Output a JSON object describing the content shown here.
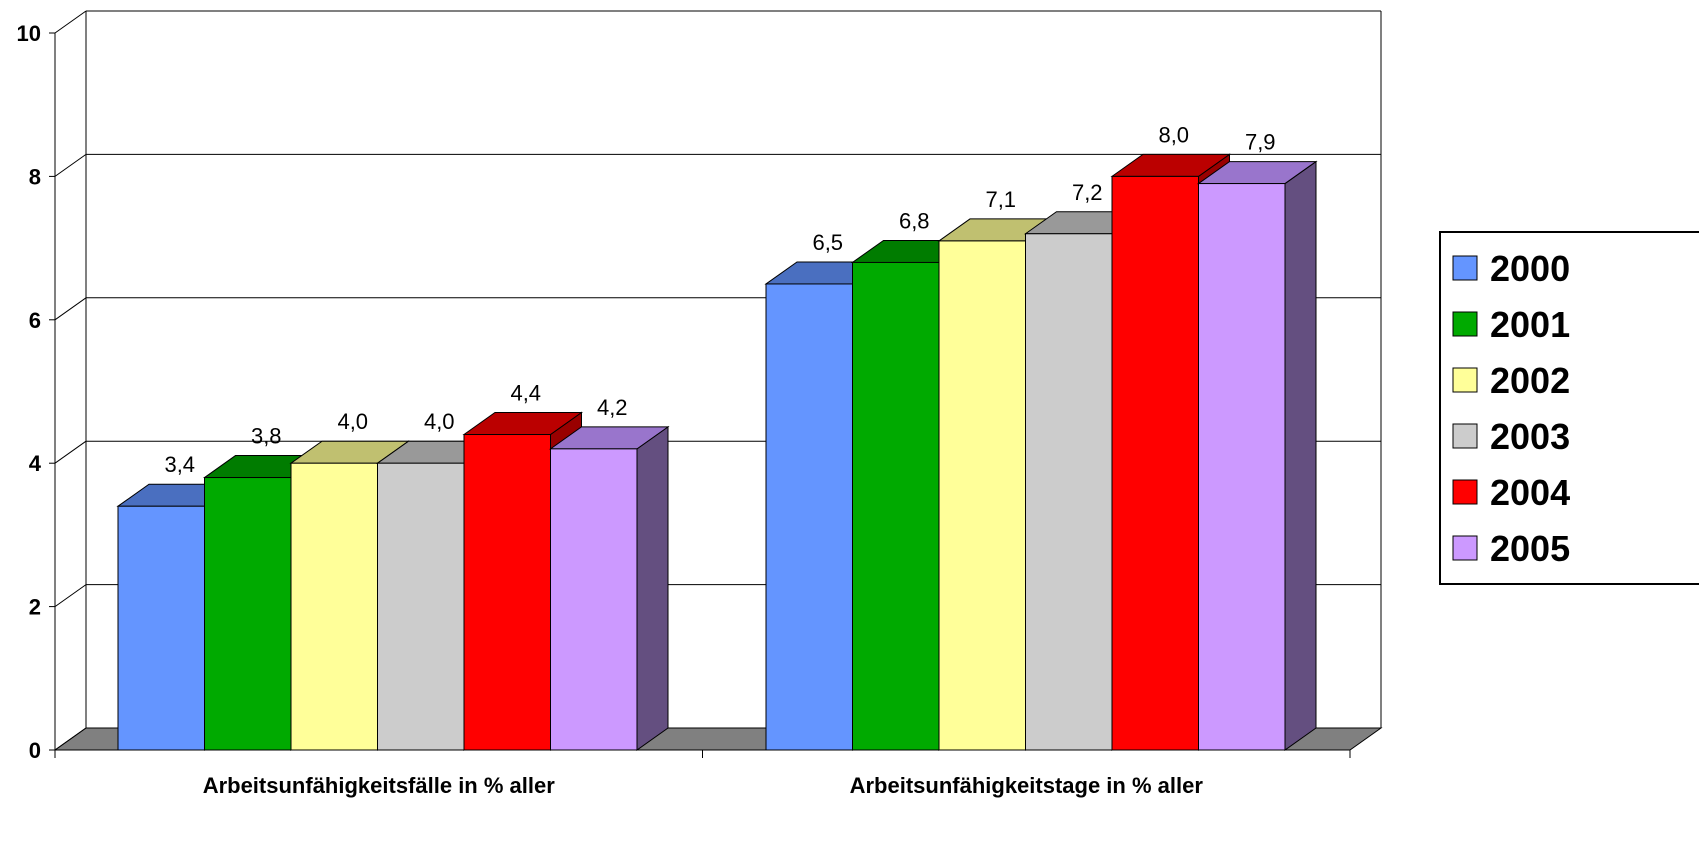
{
  "chart_data": {
    "type": "bar",
    "title": "",
    "xlabel": "",
    "ylabel": "",
    "ylim": [
      0,
      10
    ],
    "yticks": [
      "0",
      "2",
      "4",
      "6",
      "8",
      "10"
    ],
    "grid": true,
    "legend_position": "right",
    "categories": [
      "Arbeitsunfähigkeitsfälle in % aller",
      "Arbeitsunfähigkeitstage in % aller"
    ],
    "series": [
      {
        "name": "2000",
        "values": [
          3.4,
          6.5
        ],
        "labels": [
          "3,4",
          "6,5"
        ],
        "color": "#6495ff",
        "top_color": "#4a6fc0",
        "side_color": "#3d5aa0"
      },
      {
        "name": "2001",
        "values": [
          3.8,
          6.8
        ],
        "labels": [
          "3,8",
          "6,8"
        ],
        "color": "#00aa00",
        "top_color": "#007c00",
        "side_color": "#006400"
      },
      {
        "name": "2002",
        "values": [
          4.0,
          7.1
        ],
        "labels": [
          "4,0",
          "7,1"
        ],
        "color": "#ffff99",
        "top_color": "#c0c070",
        "side_color": "#a0a060"
      },
      {
        "name": "2003",
        "values": [
          4.0,
          7.2
        ],
        "labels": [
          "4,0",
          "7,2"
        ],
        "color": "#cccccc",
        "top_color": "#999999",
        "side_color": "#888888"
      },
      {
        "name": "2004",
        "values": [
          4.4,
          8.0
        ],
        "labels": [
          "4,4",
          "8,0"
        ],
        "color": "#ff0000",
        "top_color": "#bb0000",
        "side_color": "#990000"
      },
      {
        "name": "2005",
        "values": [
          4.2,
          7.9
        ],
        "labels": [
          "4,2",
          "7,9"
        ],
        "color": "#cc99ff",
        "top_color": "#9975cc",
        "side_color": "#644f80"
      }
    ],
    "wall_color": "#ffffff",
    "floor_color": "#808080",
    "gridline_color": "#000000"
  }
}
